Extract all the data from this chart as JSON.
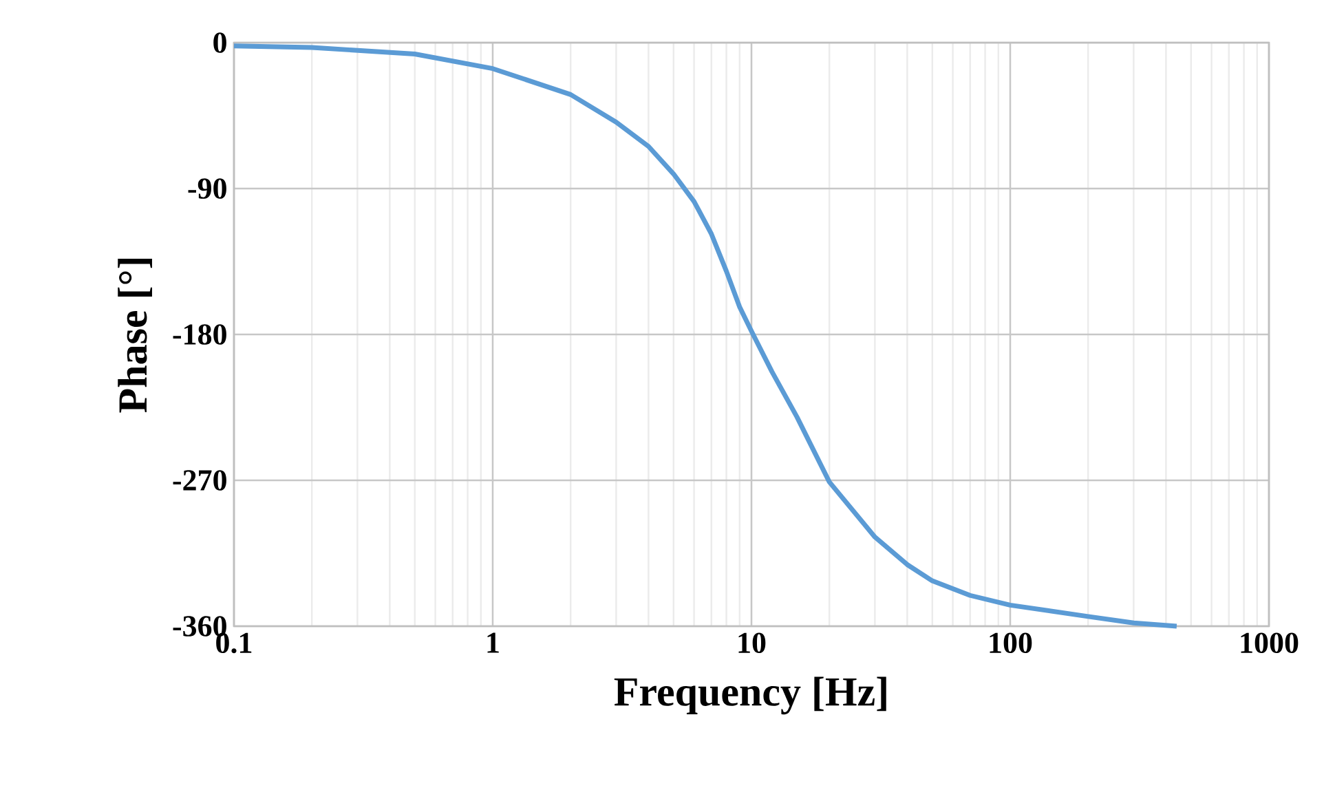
{
  "chart_data": {
    "type": "line",
    "xlabel": "Frequency [Hz]",
    "ylabel": "Phase [°]",
    "log": "x",
    "grid": true,
    "marker": "none",
    "line_style": "solid",
    "xlim": [
      0.1,
      1000
    ],
    "ylim": [
      -360,
      0
    ],
    "xticks": [
      0.1,
      1,
      10,
      100,
      1000
    ],
    "yticks": [
      -360,
      -270,
      -180,
      -90,
      0
    ],
    "series": [
      {
        "color": "#5b9bd5",
        "x": [
          0.1,
          0.2,
          0.5,
          1,
          2,
          3,
          4,
          5,
          6,
          7,
          8,
          9,
          10,
          12,
          15,
          20,
          30,
          40,
          50,
          70,
          100,
          200,
          300,
          440
        ],
        "values": [
          -2,
          -3,
          -7,
          -16,
          -32,
          -49,
          -64,
          -81,
          -98,
          -118,
          -141,
          -163,
          -178,
          -203,
          -231,
          -271,
          -305,
          -322,
          -332,
          -341,
          -347,
          -354,
          -358,
          -360
        ]
      }
    ]
  }
}
